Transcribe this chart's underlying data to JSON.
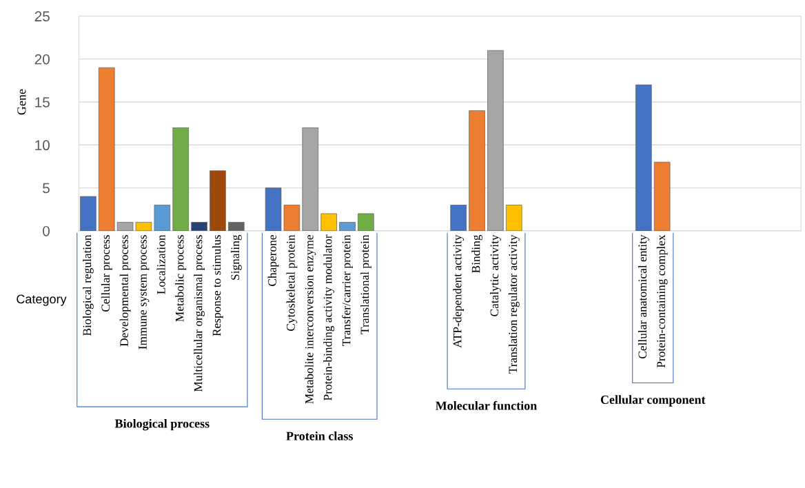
{
  "chart_data": {
    "type": "bar",
    "ylabel": "Gene",
    "xlabel": "Category",
    "categories": [
      "Biological regulation",
      "Cellular process",
      "Developmental process",
      "Immune system process",
      "Localization",
      "Metabolic process",
      "Multicellular organismal process",
      "Response to stimulus",
      "Signaling",
      null,
      "Chaperone",
      "Cytoskeletal protein",
      "Metabolite interconversion enzyme",
      "Protein-binding activity modulator",
      "Transfer/carrier protein",
      "Translational protein",
      null,
      null,
      null,
      null,
      "ATP-dependent activity",
      "Binding",
      "Catalytic activity",
      "Translation regulator activity",
      null,
      null,
      null,
      null,
      null,
      null,
      "Cellular anatomical entity",
      "Protein-containing complex",
      null,
      null,
      null,
      null,
      null,
      null,
      null
    ],
    "values": [
      4,
      19,
      1,
      1,
      3,
      12,
      1,
      7,
      1,
      null,
      5,
      3,
      12,
      2,
      1,
      2,
      null,
      null,
      null,
      null,
      3,
      14,
      21,
      3,
      null,
      null,
      null,
      null,
      null,
      null,
      17,
      8,
      null,
      null,
      null,
      null,
      null,
      null,
      null
    ],
    "colors": [
      "#4472c4",
      "#ed7d31",
      "#a5a5a5",
      "#ffc000",
      "#5b9bd5",
      "#70ad47",
      "#264478",
      "#9e480e",
      "#636363",
      "#ffffff",
      "#4472c4",
      "#ed7d31",
      "#a5a5a5",
      "#ffc000",
      "#5b9bd5",
      "#70ad47",
      "#ffffff",
      "#ffffff",
      "#ffffff",
      "#ffffff",
      "#4472c4",
      "#ed7d31",
      "#a5a5a5",
      "#ffc000",
      "#ffffff",
      "#ffffff",
      "#ffffff",
      "#ffffff",
      "#ffffff",
      "#ffffff",
      "#4472c4",
      "#ed7d31",
      "#ffffff",
      "#ffffff",
      "#ffffff",
      "#ffffff",
      "#ffffff",
      "#ffffff",
      "#ffffff"
    ],
    "ylim": [
      0,
      25
    ],
    "yticks": [
      0,
      5,
      10,
      15,
      20,
      25
    ],
    "grid": "y",
    "annotations": [
      "Biological process",
      "Protein class",
      "Molecular function",
      "Cellular component"
    ]
  }
}
